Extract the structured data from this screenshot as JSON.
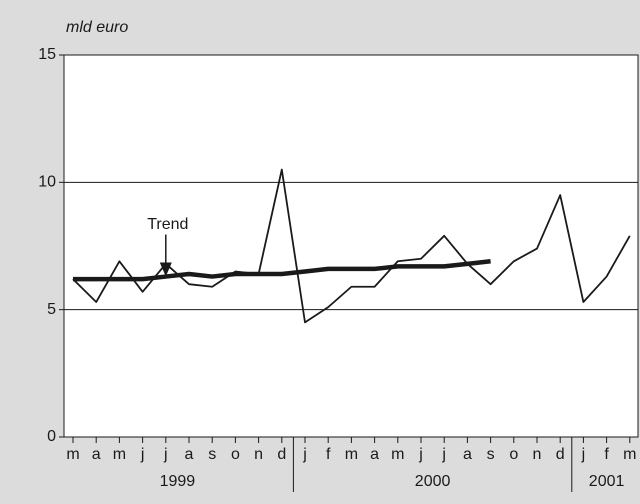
{
  "chart_data": {
    "type": "line",
    "subtitle": "mld euro",
    "categories": [
      "m",
      "a",
      "m",
      "j",
      "j",
      "a",
      "s",
      "o",
      "n",
      "d",
      "j",
      "f",
      "m",
      "a",
      "m",
      "j",
      "j",
      "a",
      "s",
      "o",
      "n",
      "d",
      "j",
      "f",
      "m"
    ],
    "year_groups": [
      {
        "label": "1999",
        "count": 10
      },
      {
        "label": "2000",
        "count": 12
      },
      {
        "label": "2001",
        "count": 3
      }
    ],
    "series": [
      {
        "color": "#1a1a1a",
        "values": [
          6.2,
          5.3,
          6.9,
          5.7,
          6.8,
          6.0,
          5.9,
          6.5,
          6.4,
          10.5,
          4.5,
          5.1,
          5.9,
          5.9,
          6.9,
          7.0,
          7.9,
          6.8,
          6.0,
          6.9,
          7.4,
          9.5,
          5.3,
          6.3,
          7.9
        ]
      },
      {
        "name": "Trend",
        "color": "#1a1a1a",
        "values": [
          6.2,
          6.2,
          6.2,
          6.2,
          6.3,
          6.4,
          6.3,
          6.4,
          6.4,
          6.4,
          6.5,
          6.6,
          6.6,
          6.6,
          6.7,
          6.7,
          6.7,
          6.8,
          6.9,
          null,
          null,
          null,
          null,
          null,
          null
        ]
      }
    ],
    "annotation": {
      "text": "Trend",
      "x_index": 4
    },
    "ylim": [
      0,
      15
    ],
    "yticks": [
      0,
      5,
      10,
      15
    ],
    "grid": true
  }
}
